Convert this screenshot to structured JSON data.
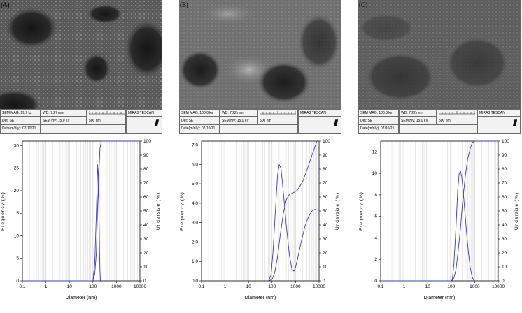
{
  "panels": [
    {
      "letter": "(A)",
      "sem": {
        "mag": "SEM MAG: 99.9 kx",
        "wd": "WD: 7.27 mm",
        "det": "Det: SE",
        "hv": "SEM HV: 15.0 kV",
        "date": "Date(m/d/y): 07/10/21",
        "scale": "500 nm",
        "brand": "MIRA3 TESCAN"
      }
    },
    {
      "letter": "(B)",
      "sem": {
        "mag": "SEM MAG: 100.0 kx",
        "wd": "WD: 7.22 mm",
        "det": "Det: SE",
        "hv": "SEM HV: 15.0 kV",
        "date": "Date(m/d/y): 07/10/21",
        "scale": "500 nm",
        "brand": "MIRA3 TESCAN"
      }
    },
    {
      "letter": "(C)",
      "sem": {
        "mag": "SEM MAG: 100.0 kx",
        "wd": "WD: 7.22 mm",
        "det": "Det: SE",
        "hv": "SEM HV: 15.0 kV",
        "date": "Date(m/d/y): 07/10/21",
        "scale": "500 nm",
        "brand": "MIRA3 TESCAN"
      }
    }
  ],
  "colors": {
    "curve": "#3c3cb4",
    "grid": "#c8c8c8",
    "axis": "#000000"
  },
  "chart_data": [
    {
      "type": "line",
      "xlabel": "Diameter (nm)",
      "ylabel": "Frequency (%)",
      "y2label": "Undersize (%)",
      "xscale": "log",
      "xlim": [
        0.1,
        10000
      ],
      "x_ticks": [
        "0.1",
        "1",
        "10",
        "100",
        "1000",
        "10000"
      ],
      "ylim": [
        0,
        31
      ],
      "y_ticks": [
        "0",
        "5",
        "10",
        "15",
        "20",
        "25",
        "30"
      ],
      "y2lim": [
        0,
        100
      ],
      "y2_ticks": [
        "0",
        "10",
        "20",
        "30",
        "40",
        "50",
        "60",
        "70",
        "80",
        "90",
        "100"
      ],
      "grid": true,
      "series": [
        {
          "axis": "left",
          "x": [
            100,
            120,
            140,
            150,
            160,
            170,
            180,
            190,
            200,
            210
          ],
          "y": [
            0,
            4,
            15,
            21,
            25.8,
            23,
            15,
            7,
            2,
            0
          ]
        },
        {
          "axis": "right",
          "x": [
            0.1,
            100,
            120,
            140,
            160,
            180,
            200,
            230,
            10000
          ],
          "y": [
            0,
            0,
            5,
            20,
            55,
            80,
            95,
            100,
            100
          ]
        }
      ]
    },
    {
      "type": "line",
      "xlabel": "Diameter (nm)",
      "ylabel": "Frequency (%)",
      "y2label": "Undersize (%)",
      "xscale": "log",
      "xlim": [
        0.1,
        10000
      ],
      "x_ticks": [
        "0.1",
        "1",
        "10",
        "100",
        "1000",
        "10000"
      ],
      "ylim": [
        0,
        7.2
      ],
      "y_ticks": [
        "0.0",
        "1.0",
        "2.0",
        "3.0",
        "4.0",
        "5.0",
        "6.0",
        "7.0"
      ],
      "y2lim": [
        0,
        100
      ],
      "y2_ticks": [
        "0",
        "10",
        "20",
        "30",
        "40",
        "50",
        "60",
        "70",
        "80",
        "90",
        "100"
      ],
      "grid": true,
      "series": [
        {
          "axis": "left",
          "x": [
            70,
            90,
            110,
            140,
            170,
            200,
            240,
            300,
            400,
            550,
            700,
            850,
            1000,
            1300,
            1800,
            2500,
            3500,
            5000,
            7000
          ],
          "y": [
            0,
            0.3,
            1.5,
            3.7,
            5.4,
            6.0,
            5.8,
            4.6,
            2.9,
            1.3,
            0.6,
            0.5,
            0.7,
            1.3,
            2.1,
            2.8,
            3.3,
            3.6,
            3.7
          ]
        },
        {
          "axis": "right",
          "x": [
            70,
            100,
            130,
            170,
            220,
            300,
            400,
            550,
            800,
            1200,
            2000,
            3000,
            5000,
            7000,
            8000
          ],
          "y": [
            0,
            1,
            6,
            17,
            32,
            48,
            58,
            62,
            63,
            65,
            71,
            79,
            90,
            97,
            100
          ]
        }
      ]
    },
    {
      "type": "line",
      "xlabel": "Diameter (nm)",
      "ylabel": "Frequency (%)",
      "y2label": "Undersize (%)",
      "xscale": "log",
      "xlim": [
        0.1,
        10000
      ],
      "x_ticks": [
        "0.1",
        "1",
        "10",
        "100",
        "1000",
        "10000"
      ],
      "ylim": [
        0,
        13
      ],
      "y_ticks": [
        "0",
        "2",
        "4",
        "6",
        "8",
        "10",
        "12"
      ],
      "y2lim": [
        0,
        100
      ],
      "y2_ticks": [
        "0",
        "10",
        "20",
        "30",
        "40",
        "50",
        "60",
        "70",
        "80",
        "90",
        "100"
      ],
      "grid": true,
      "series": [
        {
          "axis": "left",
          "x": [
            110,
            130,
            160,
            190,
            220,
            250,
            280,
            320,
            380,
            450,
            550,
            650,
            800,
            950
          ],
          "y": [
            0,
            1.5,
            5.0,
            8.5,
            10.0,
            10.2,
            9.7,
            8.5,
            6.5,
            4.5,
            2.5,
            1.2,
            0.3,
            0
          ]
        },
        {
          "axis": "right",
          "x": [
            0.1,
            100,
            130,
            160,
            200,
            250,
            300,
            400,
            500,
            650,
            800,
            1000,
            10000
          ],
          "y": [
            0,
            0,
            2,
            8,
            22,
            38,
            55,
            75,
            87,
            95,
            99,
            100,
            100
          ]
        }
      ]
    }
  ]
}
